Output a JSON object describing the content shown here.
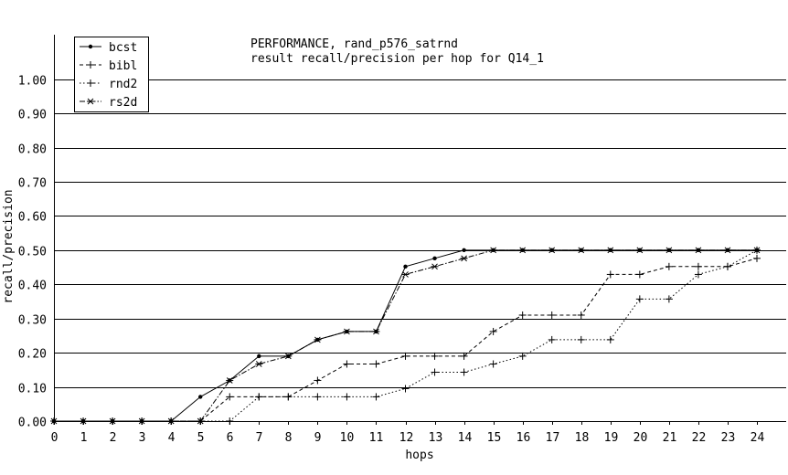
{
  "chart_data": {
    "type": "line",
    "title": "PERFORMANCE, rand_p576_satrnd",
    "subtitle": "result recall/precision per hop for Q14_1",
    "xlabel": "hops",
    "ylabel": "recall/precision",
    "xlim": [
      0,
      24
    ],
    "ylim": [
      0,
      1.05
    ],
    "x": [
      0,
      1,
      2,
      3,
      4,
      5,
      6,
      7,
      8,
      9,
      10,
      11,
      12,
      13,
      14,
      15,
      16,
      17,
      18,
      19,
      20,
      21,
      22,
      23,
      24
    ],
    "x_ticks": [
      "0",
      "1",
      "2",
      "3",
      "4",
      "5",
      "6",
      "7",
      "8",
      "9",
      "10",
      "11",
      "12",
      "13",
      "14",
      "15",
      "16",
      "17",
      "18",
      "19",
      "20",
      "21",
      "22",
      "23",
      "24"
    ],
    "y_ticks": [
      {
        "value": 0.0,
        "label": "0.00"
      },
      {
        "value": 0.1,
        "label": "0.10"
      },
      {
        "value": 0.2,
        "label": "0.20"
      },
      {
        "value": 0.3,
        "label": "0.30"
      },
      {
        "value": 0.4,
        "label": "0.40"
      },
      {
        "value": 0.5,
        "label": "0.50"
      },
      {
        "value": 0.6,
        "label": "0.60"
      },
      {
        "value": 0.7,
        "label": "0.70"
      },
      {
        "value": 0.8,
        "label": "0.80"
      },
      {
        "value": 0.9,
        "label": "0.90"
      },
      {
        "value": 1.0,
        "label": "1.00"
      }
    ],
    "grid": "horizontal",
    "legend_position": "top-left",
    "series": [
      {
        "name": "bcst",
        "marker": "dot",
        "dash": "solid",
        "values": [
          0,
          0,
          0,
          0,
          0,
          0.071,
          0.119,
          0.19,
          0.19,
          0.238,
          0.262,
          0.262,
          0.452,
          0.476,
          0.5,
          0.5,
          0.5,
          0.5,
          0.5,
          0.5,
          0.5,
          0.5,
          0.5,
          0.5,
          0.5
        ]
      },
      {
        "name": "bibl",
        "marker": "plus",
        "dash": "dashed",
        "values": [
          0,
          0,
          0,
          0,
          0,
          0,
          0.071,
          0.071,
          0.071,
          0.119,
          0.167,
          0.167,
          0.19,
          0.19,
          0.19,
          0.262,
          0.31,
          0.31,
          0.31,
          0.429,
          0.429,
          0.452,
          0.452,
          0.452,
          0.476
        ]
      },
      {
        "name": "rnd2",
        "marker": "plus",
        "dash": "dotted",
        "values": [
          0,
          0,
          0,
          0,
          0,
          0,
          0,
          0.071,
          0.071,
          0.071,
          0.071,
          0.071,
          0.095,
          0.143,
          0.143,
          0.167,
          0.19,
          0.238,
          0.238,
          0.238,
          0.357,
          0.357,
          0.429,
          0.452,
          0.5
        ]
      },
      {
        "name": "rs2d",
        "marker": "star",
        "dash": "dashdot",
        "values": [
          0,
          0,
          0,
          0,
          0,
          0,
          0.119,
          0.167,
          0.19,
          0.238,
          0.262,
          0.262,
          0.429,
          0.452,
          0.476,
          0.5,
          0.5,
          0.5,
          0.5,
          0.5,
          0.5,
          0.5,
          0.5,
          0.5,
          0.5
        ]
      }
    ]
  }
}
